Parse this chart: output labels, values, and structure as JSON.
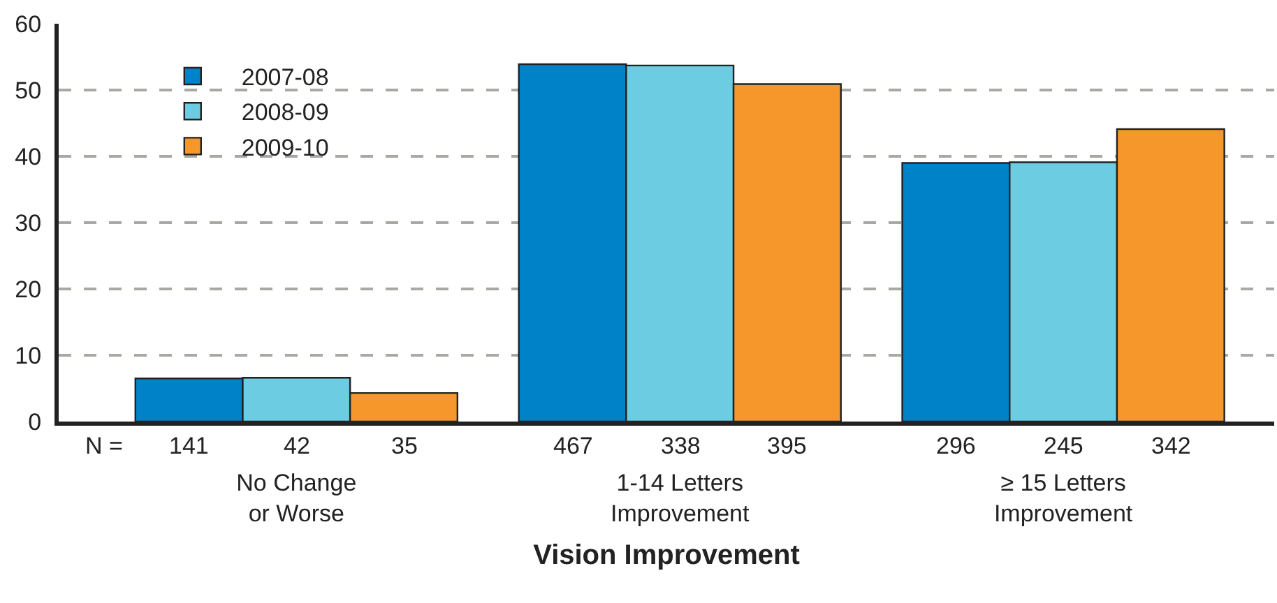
{
  "chart_data": {
    "type": "bar",
    "xlabel": "Vision Improvement",
    "categories": [
      "No Change\nor Worse",
      "1-14 Letters\nImprovement",
      "≥ 15 Letters\nImprovement"
    ],
    "series": [
      {
        "name": "2007-08",
        "color": "#0082c8",
        "values": [
          6.5,
          53.9,
          39.0
        ]
      },
      {
        "name": "2008-09",
        "color": "#6ccce2",
        "values": [
          6.6,
          53.7,
          39.1
        ]
      },
      {
        "name": "2009-10",
        "color": "#f5972a",
        "values": [
          4.3,
          50.9,
          44.1
        ]
      }
    ],
    "ylim": [
      0,
      60
    ],
    "yticks": [
      0,
      10,
      20,
      30,
      40,
      50,
      60
    ],
    "grid": "y",
    "legend": "top left",
    "annotations": [
      "N =",
      "141",
      "42",
      "35",
      "467",
      "338",
      "395",
      "296",
      "245",
      "342"
    ]
  }
}
